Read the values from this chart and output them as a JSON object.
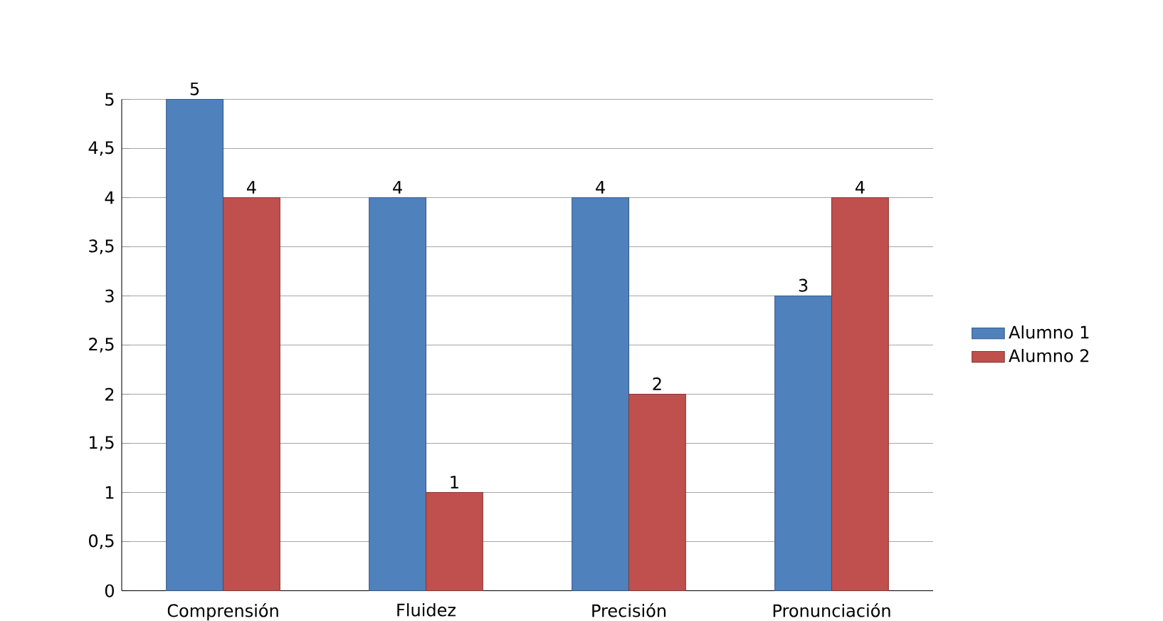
{
  "chart_data": {
    "type": "bar",
    "categories": [
      "Comprensión",
      "Fluidez",
      "Precisión",
      "Pronunciación"
    ],
    "series": [
      {
        "name": "Alumno 1",
        "color": "#4f81bd",
        "values": [
          5,
          4,
          4,
          3
        ]
      },
      {
        "name": "Alumno 2",
        "color": "#c0504d",
        "values": [
          4,
          1,
          2,
          4
        ]
      }
    ],
    "ylim": [
      0,
      5
    ],
    "yticks": [
      0,
      {
        "value": 0.5,
        "label": "0,5"
      },
      1,
      {
        "value": 1.5,
        "label": "1,5"
      },
      2,
      {
        "value": 2.5,
        "label": "2,5"
      },
      3,
      {
        "value": 3.5,
        "label": "3,5"
      },
      4,
      {
        "value": 4.5,
        "label": "4,5"
      },
      5
    ],
    "grid": "y",
    "legend": "right",
    "data_labels": true
  }
}
